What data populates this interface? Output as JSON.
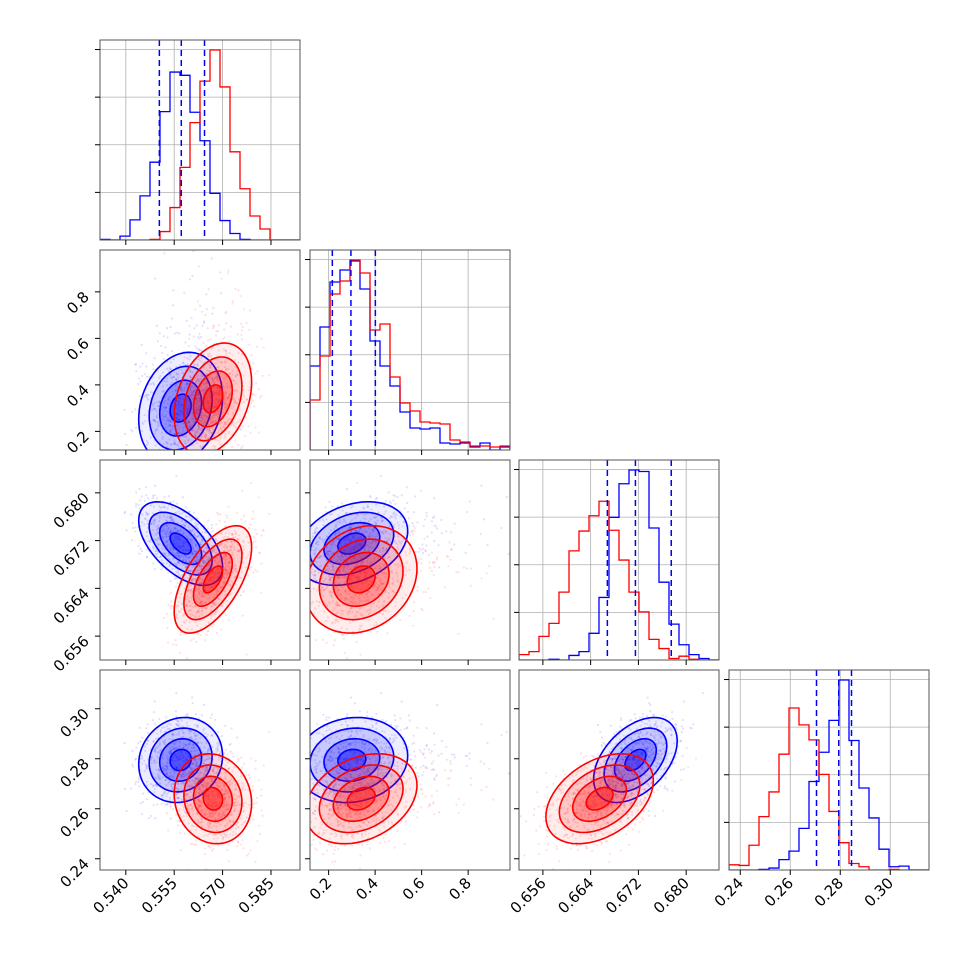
{
  "chart_data": {
    "type": "corner",
    "description_free": true,
    "colors": {
      "blue": "#0000ff",
      "red": "#ff0000",
      "grid": "#b0b0b0"
    },
    "grid": true,
    "parameters": [
      {
        "range": [
          0.532,
          0.594
        ],
        "ticks": [
          0.54,
          0.555,
          0.57,
          0.585
        ],
        "tick_labels": [
          "0.540",
          "0.555",
          "0.570",
          "0.585"
        ]
      },
      {
        "range": [
          0.12,
          0.98
        ],
        "ticks": [
          0.2,
          0.4,
          0.6,
          0.8
        ],
        "tick_labels": [
          "0.2",
          "0.4",
          "0.6",
          "0.8"
        ]
      },
      {
        "range": [
          0.652,
          0.6855
        ],
        "ticks": [
          0.656,
          0.664,
          0.672,
          0.68
        ],
        "tick_labels": [
          "0.656",
          "0.664",
          "0.672",
          "0.680"
        ]
      },
      {
        "range": [
          0.2355,
          0.3155
        ],
        "ticks": [
          0.24,
          0.26,
          0.28,
          0.3
        ],
        "tick_labels": [
          "0.24",
          "0.26",
          "0.28",
          "0.30"
        ]
      }
    ],
    "series": [
      {
        "color": "#0000ff",
        "mean": [
          0.557,
          0.3,
          0.6715,
          0.2795
        ],
        "sd": [
          0.0065,
          0.12,
          0.0035,
          0.0085
        ],
        "quantiles": [
          [
            0.5504,
            0.5572,
            0.5644
          ],
          [
            0.216,
            0.296,
            0.401
          ],
          [
            0.6668,
            0.6715,
            0.6775
          ],
          [
            0.2705,
            0.2794,
            0.2845
          ]
        ],
        "correlation": [
          [
            1,
            0.2,
            -0.55,
            0.1
          ],
          [
            0.2,
            1,
            0.3,
            0.1
          ],
          [
            -0.55,
            0.3,
            1,
            0.45
          ],
          [
            0.1,
            0.1,
            0.45,
            1
          ]
        ]
      },
      {
        "color": "#ff0000",
        "mean": [
          0.567,
          0.34,
          0.6655,
          0.264
        ],
        "sd": [
          0.006,
          0.12,
          0.0045,
          0.009
        ],
        "correlation": [
          [
            1,
            0.3,
            0.6,
            -0.1
          ],
          [
            0.3,
            1,
            0.2,
            0.3
          ],
          [
            0.6,
            0.2,
            1,
            0.4
          ],
          [
            -0.1,
            0.3,
            0.4,
            1
          ]
        ]
      }
    ]
  }
}
